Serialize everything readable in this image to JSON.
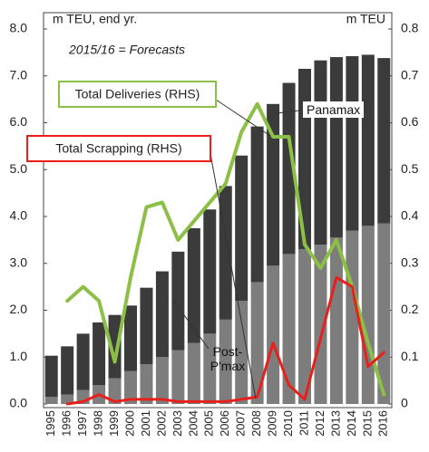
{
  "chart_data": {
    "type": "bar",
    "y_label": "m TEU, end yr.",
    "y2_label": "m TEU",
    "annotation": "2015/16 = Forecasts",
    "categories": [
      "1995",
      "1996",
      "1997",
      "1998",
      "1999",
      "2000",
      "2001",
      "2002",
      "2003",
      "2004",
      "2005",
      "2006",
      "2007",
      "2008",
      "2009",
      "2010",
      "2011",
      "2012",
      "2013",
      "2014",
      "2015",
      "2016"
    ],
    "stacked": true,
    "series": [
      {
        "name": "Post-P'max",
        "color": "#7d7d7d",
        "values": [
          0.15,
          0.2,
          0.3,
          0.4,
          0.55,
          0.7,
          0.85,
          1.0,
          1.15,
          1.3,
          1.5,
          1.8,
          2.2,
          2.6,
          2.95,
          3.2,
          3.3,
          3.4,
          3.55,
          3.7,
          3.8,
          3.85
        ]
      },
      {
        "name": "Panamax",
        "color": "#3b3b3b",
        "values": [
          0.88,
          1.03,
          1.2,
          1.34,
          1.35,
          1.4,
          1.63,
          1.83,
          2.1,
          2.45,
          2.65,
          2.85,
          3.1,
          3.32,
          3.45,
          3.65,
          3.85,
          3.93,
          3.85,
          3.72,
          3.65,
          3.53
        ]
      },
      {
        "name": "Total Deliveries (RHS)",
        "type": "line",
        "axis": "y2",
        "color": "#8cbf45",
        "values": [
          null,
          0.22,
          0.25,
          0.22,
          0.09,
          0.27,
          0.42,
          0.43,
          0.35,
          0.39,
          0.43,
          0.47,
          0.58,
          0.64,
          0.57,
          0.57,
          0.34,
          0.29,
          0.35,
          0.25,
          0.13,
          0.02
        ]
      },
      {
        "name": "Total Scrapping (RHS)",
        "type": "line",
        "axis": "y2",
        "color": "#e8201c",
        "values": [
          null,
          0.0,
          0.005,
          0.02,
          0.005,
          0.01,
          0.01,
          0.01,
          0.005,
          0.005,
          0.005,
          0.005,
          0.01,
          0.015,
          0.13,
          0.04,
          0.01,
          0.14,
          0.27,
          0.25,
          0.08,
          0.11
        ]
      }
    ],
    "ylim": [
      0,
      8
    ],
    "yticks": [
      {
        "value": 0,
        "label": "0.0"
      },
      {
        "value": 1,
        "label": "1.0"
      },
      {
        "value": 2,
        "label": "2.0"
      },
      {
        "value": 3,
        "label": "3.0"
      },
      {
        "value": 4,
        "label": "4.0"
      },
      {
        "value": 5,
        "label": "5.0"
      },
      {
        "value": 6,
        "label": "6.0"
      },
      {
        "value": 7,
        "label": "7.0"
      },
      {
        "value": 8,
        "label": "8.0"
      }
    ],
    "y2lim": [
      0,
      0.8
    ],
    "y2ticks": [
      0,
      0.1,
      0.2,
      0.3,
      0.4,
      0.5,
      0.6,
      0.7,
      0.8
    ]
  }
}
